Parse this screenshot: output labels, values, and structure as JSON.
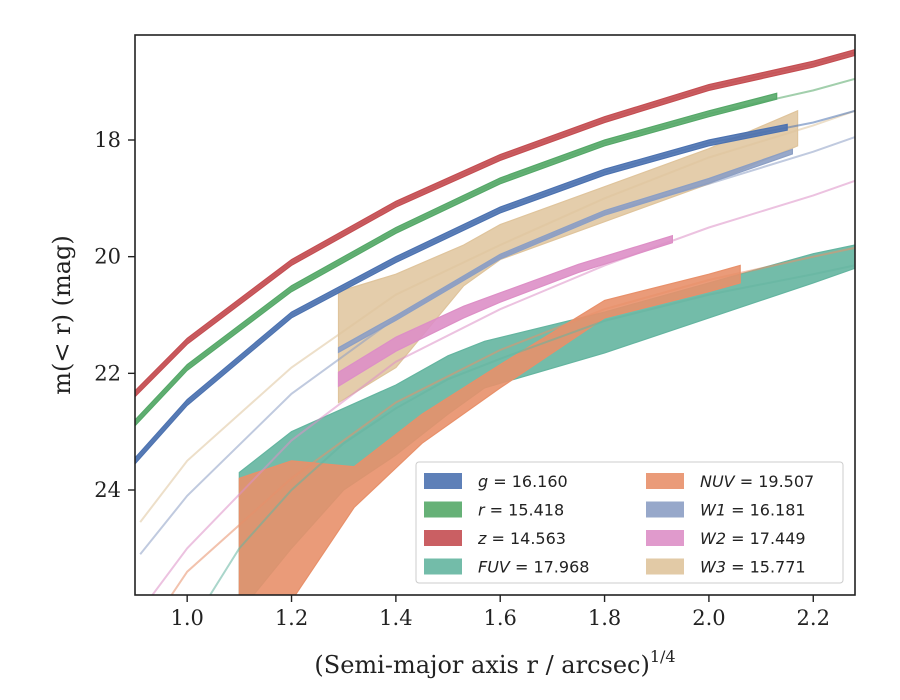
{
  "chart_data": {
    "type": "line",
    "xlabel": "(Semi-major axis r / arcsec)",
    "xlabel_italic_var": "r",
    "xlabel_superscript": "1/4",
    "ylabel": "m(< r) (mag)",
    "xlim": [
      0.9,
      2.28
    ],
    "ylim": [
      25.8,
      16.2
    ],
    "y_inverted": true,
    "grid": false,
    "legend_position": "lower-right",
    "x_ticks": [
      1.0,
      1.2,
      1.4,
      1.6,
      1.8,
      2.0,
      2.2
    ],
    "x_tick_labels": [
      "1.0",
      "1.2",
      "1.4",
      "1.6",
      "1.8",
      "2.0",
      "2.2"
    ],
    "y_ticks": [
      18,
      20,
      22,
      24
    ],
    "y_tick_labels": [
      "18",
      "20",
      "22",
      "24"
    ],
    "series": [
      {
        "name": "g = 16.160",
        "label_var": "g",
        "label_value": "16.160",
        "color": "#4c72b0",
        "model_x": [
          0.9,
          1.0,
          1.2,
          1.4,
          1.6,
          1.8,
          2.0,
          2.2,
          2.28
        ],
        "model_y": [
          23.5,
          22.5,
          21.0,
          20.05,
          19.2,
          18.55,
          18.05,
          17.7,
          17.5
        ],
        "data_x": [
          0.9,
          1.0,
          1.2,
          1.4,
          1.6,
          1.8,
          2.0,
          2.15
        ],
        "data_y": [
          23.5,
          22.5,
          21.0,
          20.05,
          19.2,
          18.55,
          18.05,
          17.78
        ],
        "data_err": [
          0.05,
          0.05,
          0.05,
          0.05,
          0.05,
          0.05,
          0.05,
          0.05
        ]
      },
      {
        "name": "r = 15.418",
        "label_var": "r",
        "label_value": "15.418",
        "color": "#55a868",
        "model_x": [
          0.9,
          1.0,
          1.2,
          1.4,
          1.6,
          1.8,
          2.0,
          2.2,
          2.28
        ],
        "model_y": [
          22.85,
          21.9,
          20.55,
          19.55,
          18.7,
          18.05,
          17.55,
          17.15,
          16.95
        ],
        "data_x": [
          0.9,
          1.0,
          1.2,
          1.4,
          1.6,
          1.8,
          2.0,
          2.13
        ],
        "data_y": [
          22.85,
          21.9,
          20.55,
          19.55,
          18.7,
          18.05,
          17.55,
          17.25
        ],
        "data_err": [
          0.05,
          0.05,
          0.05,
          0.05,
          0.05,
          0.05,
          0.05,
          0.05
        ]
      },
      {
        "name": "z = 14.563",
        "label_var": "z",
        "label_value": "14.563",
        "color": "#c44e52",
        "model_x": [
          0.9,
          1.0,
          1.2,
          1.4,
          1.6,
          1.8,
          2.0,
          2.2,
          2.28
        ],
        "model_y": [
          22.35,
          21.45,
          20.1,
          19.1,
          18.3,
          17.65,
          17.1,
          16.7,
          16.5
        ],
        "data_x": [
          0.9,
          1.0,
          1.2,
          1.4,
          1.6,
          1.8,
          2.0,
          2.2,
          2.28
        ],
        "data_y": [
          22.35,
          21.45,
          20.1,
          19.1,
          18.3,
          17.65,
          17.1,
          16.7,
          16.5
        ],
        "data_err": [
          0.05,
          0.05,
          0.05,
          0.05,
          0.05,
          0.05,
          0.05,
          0.05,
          0.05
        ]
      },
      {
        "name": "FUV = 17.968",
        "label_var": "FUV",
        "label_value": "17.968",
        "color": "#64b5a0",
        "model_x": [
          1.03,
          1.1,
          1.2,
          1.3,
          1.4,
          1.5,
          1.6,
          1.8,
          2.0,
          2.2,
          2.28
        ],
        "model_y": [
          26.0,
          25.0,
          24.0,
          23.2,
          22.6,
          22.1,
          21.75,
          21.1,
          20.65,
          20.3,
          20.15
        ],
        "data_x": [
          1.1,
          1.2,
          1.3,
          1.4,
          1.5,
          1.57,
          1.8,
          2.0,
          2.2,
          2.28
        ],
        "data_y": [
          24.9,
          24.0,
          23.3,
          22.8,
          22.2,
          21.85,
          21.3,
          20.75,
          20.2,
          20.0
        ],
        "data_err": [
          1.2,
          1.0,
          0.7,
          0.6,
          0.5,
          0.4,
          0.35,
          0.3,
          0.25,
          0.2
        ]
      },
      {
        "name": "NUV = 19.507",
        "label_var": "NUV",
        "label_value": "19.507",
        "color": "#e8906a",
        "model_x": [
          0.97,
          1.0,
          1.2,
          1.4,
          1.6,
          1.8,
          2.0,
          2.2,
          2.28
        ],
        "model_y": [
          25.8,
          25.4,
          23.8,
          22.5,
          21.6,
          20.9,
          20.4,
          20.0,
          19.85
        ],
        "data_x": [
          1.1,
          1.2,
          1.32,
          1.45,
          1.6,
          1.8,
          2.0,
          2.06
        ],
        "data_y": [
          24.9,
          24.7,
          23.95,
          22.95,
          22.05,
          20.9,
          20.45,
          20.3
        ],
        "data_err": [
          1.1,
          1.2,
          0.35,
          0.25,
          0.2,
          0.15,
          0.15,
          0.15
        ]
      },
      {
        "name": "W1 = 16.181",
        "label_var": "W1",
        "label_value": "16.181",
        "color": "#8c9fc4",
        "model_x": [
          0.91,
          1.0,
          1.2,
          1.4,
          1.6,
          1.8,
          2.0,
          2.2,
          2.28
        ],
        "model_y": [
          25.1,
          24.1,
          22.35,
          21.05,
          20.0,
          19.25,
          18.75,
          18.2,
          17.95
        ],
        "data_x": [
          1.29,
          1.4,
          1.6,
          1.8,
          2.0,
          2.16
        ],
        "data_y": [
          21.6,
          21.05,
          20.0,
          19.25,
          18.7,
          18.2
        ],
        "data_err": [
          0.04,
          0.04,
          0.04,
          0.04,
          0.04,
          0.04
        ]
      },
      {
        "name": "W2 = 17.449",
        "label_var": "W2",
        "label_value": "17.449",
        "color": "#dd8fc6",
        "model_x": [
          0.9,
          1.0,
          1.2,
          1.4,
          1.6,
          1.8,
          2.0,
          2.2,
          2.28
        ],
        "model_y": [
          26.2,
          25.0,
          23.15,
          21.8,
          20.9,
          20.15,
          19.5,
          18.95,
          18.7
        ],
        "data_x": [
          1.29,
          1.4,
          1.53,
          1.6,
          1.75,
          1.93
        ],
        "data_y": [
          22.1,
          21.5,
          20.95,
          20.7,
          20.2,
          19.7
        ],
        "data_err": [
          0.12,
          0.12,
          0.1,
          0.08,
          0.07,
          0.06
        ]
      },
      {
        "name": "W3 = 15.771",
        "label_var": "W3",
        "label_value": "15.771",
        "color": "#dfc49c",
        "model_x": [
          0.91,
          1.0,
          1.2,
          1.4,
          1.6,
          1.8,
          2.0,
          2.2,
          2.28
        ],
        "model_y": [
          24.55,
          23.5,
          21.9,
          20.65,
          19.8,
          19.0,
          18.3,
          17.75,
          17.5
        ],
        "data_x": [
          1.29,
          1.4,
          1.53,
          1.6,
          1.8,
          2.0,
          2.17
        ],
        "data_y": [
          21.55,
          21.1,
          20.15,
          19.75,
          19.1,
          18.45,
          17.8
        ],
        "data_err": [
          0.95,
          0.8,
          0.35,
          0.3,
          0.3,
          0.3,
          0.3
        ]
      }
    ]
  }
}
